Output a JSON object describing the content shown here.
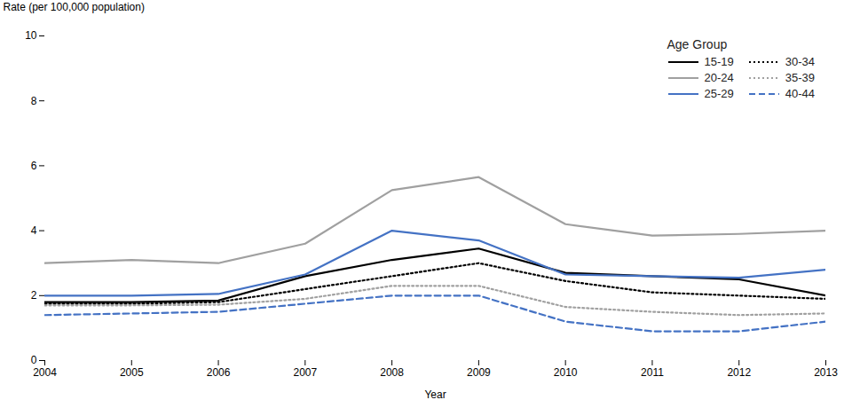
{
  "chart_data": {
    "type": "line",
    "x": [
      2004,
      2005,
      2006,
      2007,
      2008,
      2009,
      2010,
      2011,
      2012,
      2013
    ],
    "xlabel": "Year",
    "ylabel": "Rate (per 100,000 population)",
    "xlim": [
      2004,
      2013
    ],
    "xticks": [
      2004,
      2005,
      2006,
      2007,
      2008,
      2009,
      2010,
      2011,
      2012,
      2013
    ],
    "ylim": [
      0,
      10
    ],
    "yticks": [
      0,
      2,
      4,
      6,
      8,
      10
    ],
    "grid": false,
    "legend": "upper right",
    "legend_title": "Age Group",
    "series": [
      {
        "name": "15-19",
        "color": "#000000",
        "line_style": "solid",
        "values": [
          1.8,
          1.8,
          1.85,
          2.6,
          3.1,
          3.45,
          2.7,
          2.6,
          2.5,
          2.0
        ]
      },
      {
        "name": "20-24",
        "color": "#a0a0a0",
        "line_style": "solid",
        "values": [
          3.0,
          3.1,
          3.0,
          3.6,
          5.25,
          5.65,
          4.2,
          3.85,
          3.9,
          4.0
        ]
      },
      {
        "name": "25-29",
        "color": "#4472c4",
        "line_style": "solid",
        "values": [
          2.0,
          2.0,
          2.05,
          2.65,
          4.0,
          3.7,
          2.65,
          2.6,
          2.55,
          2.8
        ]
      },
      {
        "name": "30-34",
        "color": "#000000",
        "line_style": "dotted",
        "values": [
          1.75,
          1.75,
          1.8,
          2.2,
          2.6,
          3.0,
          2.45,
          2.1,
          2.0,
          1.9
        ]
      },
      {
        "name": "35-39",
        "color": "#a0a0a0",
        "line_style": "dotted",
        "values": [
          1.7,
          1.7,
          1.72,
          1.9,
          2.3,
          2.3,
          1.65,
          1.5,
          1.4,
          1.45
        ]
      },
      {
        "name": "40-44",
        "color": "#4472c4",
        "line_style": "dashed",
        "values": [
          1.4,
          1.45,
          1.5,
          1.75,
          2.0,
          2.0,
          1.2,
          0.9,
          0.9,
          1.2
        ]
      }
    ]
  }
}
